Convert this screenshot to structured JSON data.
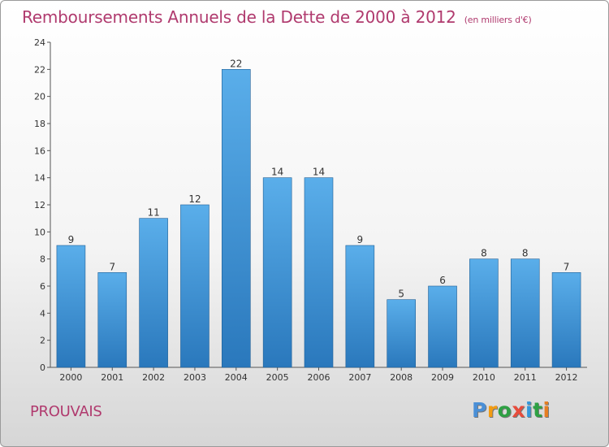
{
  "title": "Remboursements Annuels de la Dette de 2000 à 2012",
  "subtitle": "(en milliers d'€)",
  "commune": "PROUVAIS",
  "logo": {
    "letters": [
      "P",
      "r",
      "o",
      "x",
      "i",
      "t",
      "i"
    ],
    "colors": [
      "#4a8fd6",
      "#f39c12",
      "#2ea043",
      "#e74c3c",
      "#3498db",
      "#2ea043",
      "#e67e22"
    ]
  },
  "colors": {
    "bar": "#4a9fe0",
    "bar_dark": "#2a7cc0",
    "text": "#b03a6e"
  },
  "chart_data": {
    "type": "bar",
    "categories": [
      "2000",
      "2001",
      "2002",
      "2003",
      "2004",
      "2005",
      "2006",
      "2007",
      "2008",
      "2009",
      "2010",
      "2011",
      "2012"
    ],
    "values": [
      9,
      7,
      11,
      12,
      22,
      14,
      14,
      9,
      5,
      6,
      8,
      8,
      7
    ],
    "ylim": [
      0,
      24
    ],
    "yticks": [
      0,
      2,
      4,
      6,
      8,
      10,
      12,
      14,
      16,
      18,
      20,
      22,
      24
    ],
    "grid": false
  }
}
